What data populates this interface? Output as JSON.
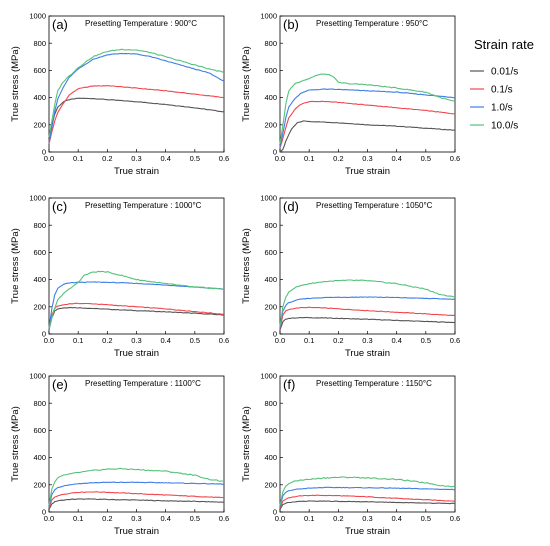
{
  "chart_data": {
    "type": "line",
    "legend": {
      "title": "Strain rate",
      "placement": "right",
      "entries": [
        {
          "label": "0.01/s",
          "color": "#555555"
        },
        {
          "label": "0.1/s",
          "color": "#f0474f"
        },
        {
          "label": "1.0/s",
          "color": "#3f7ee8"
        },
        {
          "label": "10.0/s",
          "color": "#55c27a"
        }
      ]
    },
    "panels": [
      {
        "letter": "(a)",
        "title": "Presetting Temperature : 900°C",
        "xlabel": "True strain",
        "ylabel": "True stress (MPa)",
        "xlim": [
          0,
          0.6
        ],
        "ylim": [
          0,
          1000
        ],
        "xticks": [
          "0.0",
          "0.1",
          "0.2",
          "0.3",
          "0.4",
          "0.5",
          "0.6"
        ],
        "yticks": [
          "0",
          "200",
          "400",
          "600",
          "800",
          "1000"
        ],
        "series": [
          {
            "color": "#555555",
            "x": [
              0,
              0.01,
              0.02,
              0.03,
              0.05,
              0.07,
              0.1,
              0.15,
              0.2,
              0.3,
              0.4,
              0.5,
              0.6
            ],
            "y": [
              80,
              200,
              280,
              330,
              370,
              385,
              395,
              393,
              385,
              370,
              350,
              325,
              295
            ]
          },
          {
            "color": "#f0474f",
            "x": [
              0,
              0.01,
              0.02,
              0.03,
              0.05,
              0.07,
              0.1,
              0.15,
              0.2,
              0.3,
              0.4,
              0.5,
              0.6
            ],
            "y": [
              60,
              150,
              230,
              290,
              360,
              420,
              465,
              485,
              488,
              470,
              450,
              425,
              400
            ]
          },
          {
            "color": "#3f7ee8",
            "x": [
              0,
              0.01,
              0.02,
              0.03,
              0.05,
              0.07,
              0.1,
              0.15,
              0.2,
              0.25,
              0.3,
              0.35,
              0.4,
              0.5,
              0.55,
              0.6
            ],
            "y": [
              70,
              180,
              300,
              390,
              480,
              550,
              610,
              680,
              715,
              725,
              720,
              700,
              670,
              610,
              580,
              520
            ]
          },
          {
            "color": "#55c27a",
            "x": [
              0,
              0.01,
              0.02,
              0.03,
              0.05,
              0.07,
              0.1,
              0.15,
              0.2,
              0.25,
              0.3,
              0.35,
              0.4,
              0.5,
              0.55,
              0.6
            ],
            "y": [
              110,
              230,
              350,
              450,
              520,
              560,
              620,
              700,
              740,
              755,
              750,
              730,
              700,
              640,
              610,
              585
            ]
          }
        ]
      },
      {
        "letter": "(b)",
        "title": "Presetting Temperature : 950°C",
        "xlabel": "True strain",
        "ylabel": "True stress (MPa)",
        "xlim": [
          0,
          0.6
        ],
        "ylim": [
          0,
          1000
        ],
        "xticks": [
          "0.0",
          "0.1",
          "0.2",
          "0.3",
          "0.4",
          "0.5",
          "0.6"
        ],
        "yticks": [
          "0",
          "200",
          "400",
          "600",
          "800",
          "1000"
        ],
        "series": [
          {
            "color": "#555555",
            "x": [
              0,
              0.01,
              0.02,
              0.04,
              0.06,
              0.08,
              0.1,
              0.15,
              0.2,
              0.3,
              0.4,
              0.5,
              0.6
            ],
            "y": [
              0,
              20,
              80,
              170,
              215,
              228,
              225,
              220,
              215,
              200,
              190,
              175,
              160
            ]
          },
          {
            "color": "#f0474f",
            "x": [
              0,
              0.01,
              0.02,
              0.03,
              0.05,
              0.07,
              0.1,
              0.15,
              0.2,
              0.3,
              0.4,
              0.5,
              0.6
            ],
            "y": [
              30,
              100,
              180,
              250,
              310,
              350,
              370,
              372,
              365,
              345,
              325,
              305,
              280
            ]
          },
          {
            "color": "#3f7ee8",
            "x": [
              0,
              0.01,
              0.02,
              0.03,
              0.05,
              0.07,
              0.1,
              0.15,
              0.2,
              0.3,
              0.4,
              0.5,
              0.6
            ],
            "y": [
              40,
              140,
              250,
              330,
              390,
              430,
              455,
              462,
              460,
              450,
              440,
              420,
              400
            ]
          },
          {
            "color": "#55c27a",
            "x": [
              0,
              0.01,
              0.02,
              0.03,
              0.05,
              0.07,
              0.1,
              0.12,
              0.15,
              0.18,
              0.2,
              0.25,
              0.3,
              0.4,
              0.5,
              0.55,
              0.6
            ],
            "y": [
              60,
              200,
              350,
              450,
              500,
              520,
              540,
              560,
              575,
              560,
              510,
              500,
              495,
              470,
              440,
              400,
              370
            ]
          }
        ]
      },
      {
        "letter": "(c)",
        "title": "Presetting Temperature : 1000°C",
        "xlabel": "True strain",
        "ylabel": "True stress (MPa)",
        "xlim": [
          0,
          0.6
        ],
        "ylim": [
          0,
          1000
        ],
        "xticks": [
          "0.0",
          "0.1",
          "0.2",
          "0.3",
          "0.4",
          "0.5",
          "0.6"
        ],
        "yticks": [
          "0",
          "200",
          "400",
          "600",
          "800",
          "1000"
        ],
        "series": [
          {
            "color": "#555555",
            "x": [
              0,
              0.01,
              0.02,
              0.03,
              0.05,
              0.07,
              0.1,
              0.15,
              0.2,
              0.3,
              0.4,
              0.5,
              0.6
            ],
            "y": [
              30,
              120,
              170,
              185,
              192,
              195,
              193,
              188,
              182,
              172,
              163,
              152,
              140
            ]
          },
          {
            "color": "#f0474f",
            "x": [
              0,
              0.01,
              0.02,
              0.03,
              0.05,
              0.07,
              0.1,
              0.15,
              0.2,
              0.3,
              0.4,
              0.5,
              0.6
            ],
            "y": [
              40,
              140,
              190,
              205,
              215,
              222,
              225,
              222,
              215,
              200,
              185,
              165,
              145
            ]
          },
          {
            "color": "#3f7ee8",
            "x": [
              0,
              0.01,
              0.02,
              0.03,
              0.05,
              0.07,
              0.1,
              0.15,
              0.2,
              0.3,
              0.4,
              0.5,
              0.6
            ],
            "y": [
              50,
              190,
              290,
              335,
              365,
              375,
              380,
              382,
              380,
              372,
              360,
              345,
              330
            ]
          },
          {
            "color": "#55c27a",
            "x": [
              0,
              0.01,
              0.02,
              0.03,
              0.05,
              0.07,
              0.1,
              0.12,
              0.15,
              0.18,
              0.2,
              0.25,
              0.3,
              0.4,
              0.5,
              0.6
            ],
            "y": [
              40,
              120,
              190,
              250,
              300,
              330,
              380,
              430,
              455,
              460,
              455,
              430,
              400,
              370,
              345,
              330
            ]
          }
        ]
      },
      {
        "letter": "(d)",
        "title": "Presetting Temperature : 1050°C",
        "xlabel": "True strain",
        "ylabel": "True stress (MPa)",
        "xlim": [
          0,
          0.6
        ],
        "ylim": [
          0,
          1000
        ],
        "xticks": [
          "0.0",
          "0.1",
          "0.2",
          "0.3",
          "0.4",
          "0.5",
          "0.6"
        ],
        "yticks": [
          "0",
          "200",
          "400",
          "600",
          "800",
          "1000"
        ],
        "series": [
          {
            "color": "#555555",
            "x": [
              0,
              0.01,
              0.02,
              0.03,
              0.05,
              0.07,
              0.1,
              0.15,
              0.2,
              0.3,
              0.4,
              0.5,
              0.6
            ],
            "y": [
              30,
              90,
              110,
              115,
              118,
              120,
              120,
              118,
              115,
              108,
              100,
              92,
              85
            ]
          },
          {
            "color": "#f0474f",
            "x": [
              0,
              0.01,
              0.02,
              0.03,
              0.05,
              0.07,
              0.1,
              0.15,
              0.2,
              0.3,
              0.4,
              0.5,
              0.6
            ],
            "y": [
              40,
              140,
              170,
              180,
              188,
              193,
              195,
              192,
              185,
              172,
              160,
              148,
              135
            ]
          },
          {
            "color": "#3f7ee8",
            "x": [
              0,
              0.01,
              0.02,
              0.03,
              0.05,
              0.07,
              0.1,
              0.15,
              0.2,
              0.3,
              0.4,
              0.5,
              0.6
            ],
            "y": [
              50,
              170,
              210,
              230,
              245,
              255,
              262,
              268,
              270,
              272,
              268,
              262,
              255
            ]
          },
          {
            "color": "#55c27a",
            "x": [
              0,
              0.01,
              0.02,
              0.03,
              0.05,
              0.07,
              0.1,
              0.15,
              0.2,
              0.25,
              0.3,
              0.4,
              0.5,
              0.55,
              0.6
            ],
            "y": [
              60,
              200,
              270,
              310,
              340,
              355,
              370,
              385,
              392,
              395,
              392,
              370,
              330,
              290,
              270
            ]
          }
        ]
      },
      {
        "letter": "(e)",
        "title": "Presetting Temperature : 1100°C",
        "xlabel": "True strain",
        "ylabel": "True stress (MPa)",
        "xlim": [
          0,
          0.6
        ],
        "ylim": [
          0,
          1000
        ],
        "xticks": [
          "0.0",
          "0.1",
          "0.2",
          "0.3",
          "0.4",
          "0.5",
          "0.6"
        ],
        "yticks": [
          "0",
          "200",
          "400",
          "600",
          "800",
          "1000"
        ],
        "series": [
          {
            "color": "#555555",
            "x": [
              0,
              0.01,
              0.02,
              0.03,
              0.05,
              0.07,
              0.1,
              0.15,
              0.2,
              0.3,
              0.4,
              0.5,
              0.6
            ],
            "y": [
              20,
              60,
              75,
              82,
              88,
              92,
              95,
              95,
              92,
              88,
              82,
              78,
              72
            ]
          },
          {
            "color": "#f0474f",
            "x": [
              0,
              0.01,
              0.02,
              0.03,
              0.05,
              0.07,
              0.1,
              0.15,
              0.2,
              0.3,
              0.4,
              0.5,
              0.6
            ],
            "y": [
              30,
              90,
              110,
              120,
              130,
              138,
              145,
              148,
              145,
              135,
              125,
              115,
              105
            ]
          },
          {
            "color": "#3f7ee8",
            "x": [
              0,
              0.01,
              0.02,
              0.03,
              0.05,
              0.07,
              0.1,
              0.15,
              0.2,
              0.3,
              0.4,
              0.5,
              0.6
            ],
            "y": [
              40,
              130,
              165,
              180,
              192,
              200,
              208,
              215,
              218,
              218,
              215,
              210,
              205
            ]
          },
          {
            "color": "#55c27a",
            "x": [
              0,
              0.01,
              0.02,
              0.03,
              0.05,
              0.07,
              0.1,
              0.15,
              0.2,
              0.25,
              0.3,
              0.4,
              0.5,
              0.55,
              0.6
            ],
            "y": [
              50,
              170,
              220,
              250,
              270,
              280,
              290,
              305,
              315,
              318,
              312,
              300,
              270,
              240,
              225
            ]
          }
        ]
      },
      {
        "letter": "(f)",
        "title": "Presetting Temperature : 1150°C",
        "xlabel": "True strain",
        "ylabel": "True stress (MPa)",
        "xlim": [
          0,
          0.6
        ],
        "ylim": [
          0,
          1000
        ],
        "xticks": [
          "0.0",
          "0.1",
          "0.2",
          "0.3",
          "0.4",
          "0.5",
          "0.6"
        ],
        "yticks": [
          "0",
          "200",
          "400",
          "600",
          "800",
          "1000"
        ],
        "series": [
          {
            "color": "#555555",
            "x": [
              0,
              0.01,
              0.02,
              0.03,
              0.05,
              0.07,
              0.1,
              0.15,
              0.2,
              0.3,
              0.4,
              0.5,
              0.6
            ],
            "y": [
              20,
              55,
              65,
              70,
              75,
              78,
              80,
              80,
              78,
              75,
              70,
              66,
              62
            ]
          },
          {
            "color": "#f0474f",
            "x": [
              0,
              0.01,
              0.02,
              0.03,
              0.05,
              0.07,
              0.1,
              0.15,
              0.2,
              0.3,
              0.4,
              0.5,
              0.6
            ],
            "y": [
              30,
              80,
              95,
              105,
              112,
              118,
              122,
              122,
              120,
              112,
              100,
              90,
              80
            ]
          },
          {
            "color": "#3f7ee8",
            "x": [
              0,
              0.01,
              0.02,
              0.03,
              0.05,
              0.07,
              0.1,
              0.15,
              0.2,
              0.3,
              0.4,
              0.5,
              0.6
            ],
            "y": [
              40,
              120,
              145,
              155,
              165,
              170,
              175,
              180,
              180,
              178,
              175,
              170,
              165
            ]
          },
          {
            "color": "#55c27a",
            "x": [
              0,
              0.01,
              0.02,
              0.03,
              0.05,
              0.07,
              0.1,
              0.15,
              0.2,
              0.25,
              0.3,
              0.4,
              0.5,
              0.55,
              0.6
            ],
            "y": [
              50,
              150,
              190,
              210,
              225,
              235,
              240,
              250,
              255,
              255,
              250,
              240,
              215,
              195,
              185
            ]
          }
        ]
      }
    ]
  }
}
